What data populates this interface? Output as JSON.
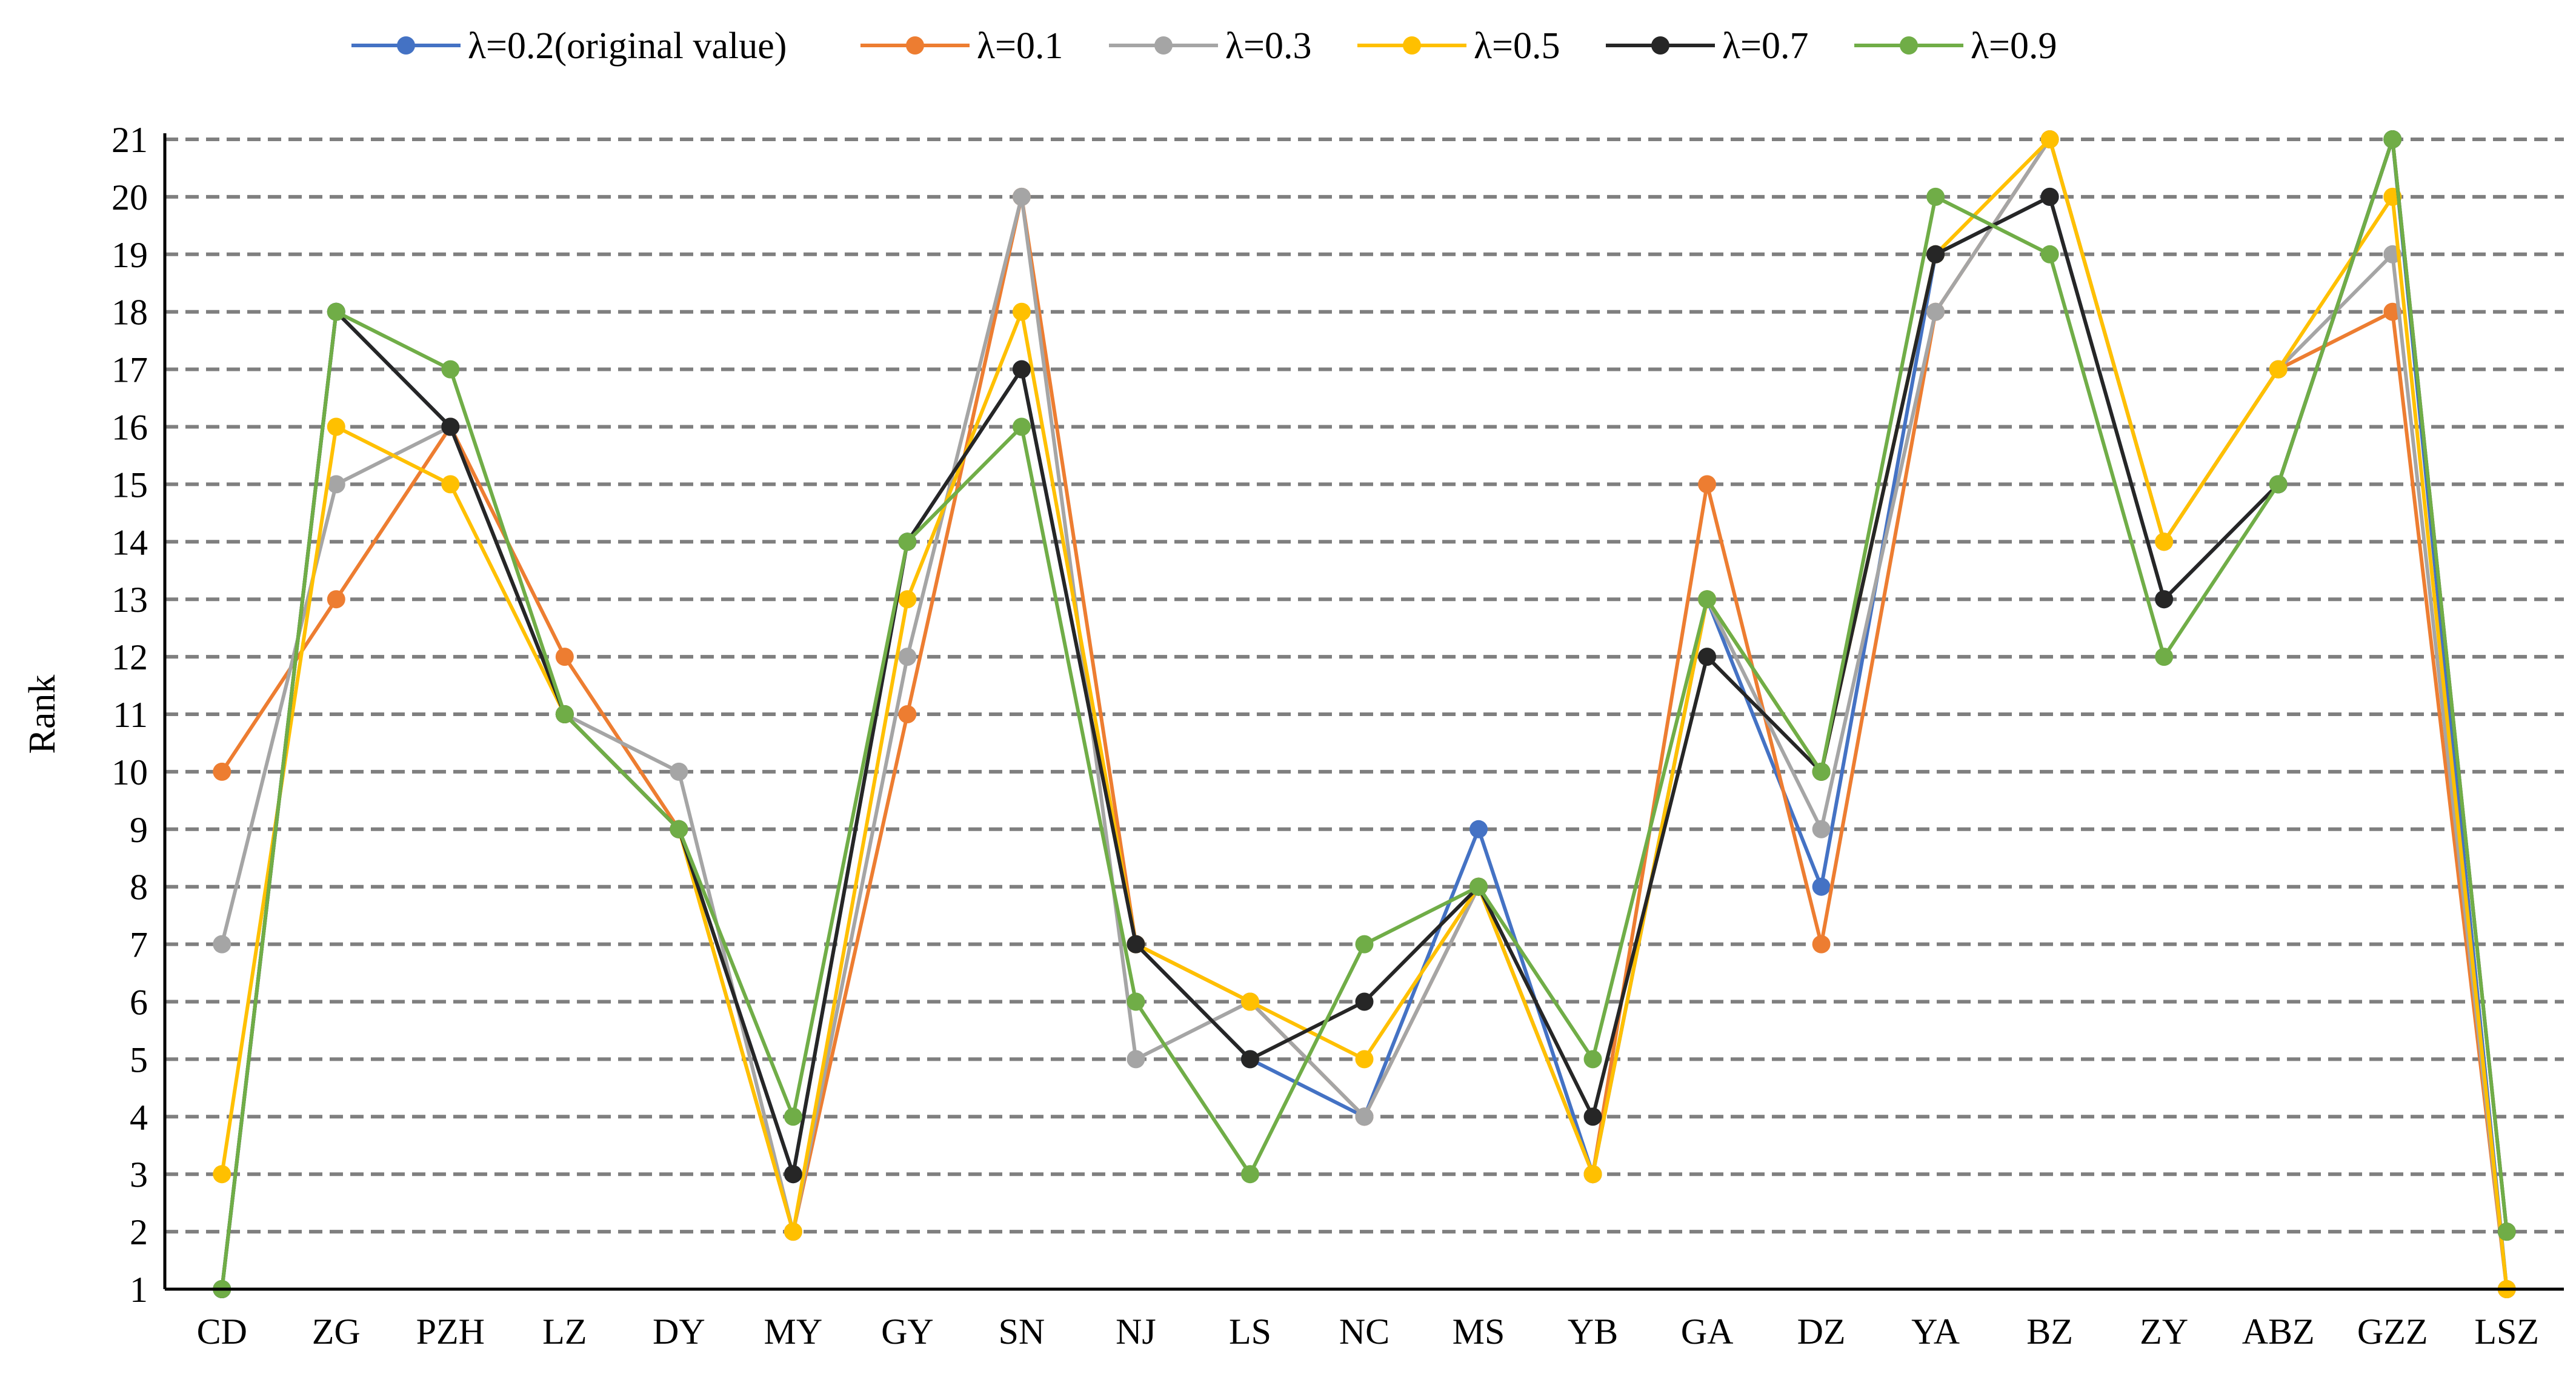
{
  "chart_data": {
    "type": "line",
    "title": "",
    "xlabel": "",
    "ylabel": "Rank",
    "ylim": [
      1,
      21
    ],
    "yticks": [
      1,
      2,
      3,
      4,
      5,
      6,
      7,
      8,
      9,
      10,
      11,
      12,
      13,
      14,
      15,
      16,
      17,
      18,
      19,
      20,
      21
    ],
    "grid": "horizontal dashed",
    "legend_position": "top",
    "categories": [
      "CD",
      "ZG",
      "PZH",
      "LZ",
      "DY",
      "MY",
      "GY",
      "SN",
      "NJ",
      "LS",
      "NC",
      "MS",
      "YB",
      "GA",
      "DZ",
      "YA",
      "BZ",
      "ZY",
      "ABZ",
      "GZZ",
      "LSZ"
    ],
    "series": [
      {
        "name": "λ=0.2(original value)",
        "color": "#4472c4",
        "values": [
          1,
          18,
          16,
          11,
          9,
          3,
          14,
          17,
          7,
          5,
          4,
          9,
          3,
          13,
          8,
          19,
          20,
          13,
          15,
          21,
          1
        ]
      },
      {
        "name": "λ=0.1",
        "color": "#ed7d31",
        "values": [
          10,
          13,
          16,
          12,
          9,
          2,
          11,
          20,
          7,
          6,
          4,
          8,
          3,
          15,
          7,
          18,
          21,
          14,
          17,
          18,
          1
        ]
      },
      {
        "name": "λ=0.3",
        "color": "#a5a5a5",
        "values": [
          7,
          15,
          16,
          11,
          10,
          2,
          12,
          20,
          5,
          6,
          4,
          8,
          3,
          13,
          9,
          18,
          21,
          14,
          17,
          19,
          1
        ]
      },
      {
        "name": "λ=0.5",
        "color": "#ffc000",
        "values": [
          3,
          16,
          15,
          11,
          9,
          2,
          13,
          18,
          7,
          6,
          5,
          8,
          3,
          13,
          10,
          19,
          21,
          14,
          17,
          20,
          1
        ]
      },
      {
        "name": "λ=0.7",
        "color": "#262626",
        "values": [
          1,
          18,
          16,
          11,
          9,
          3,
          14,
          17,
          7,
          5,
          6,
          8,
          4,
          12,
          10,
          19,
          20,
          13,
          15,
          21,
          2
        ]
      },
      {
        "name": "λ=0.9",
        "color": "#70ad47",
        "values": [
          1,
          18,
          17,
          11,
          9,
          4,
          14,
          16,
          6,
          3,
          7,
          8,
          5,
          13,
          10,
          20,
          19,
          12,
          15,
          21,
          2
        ]
      }
    ]
  }
}
